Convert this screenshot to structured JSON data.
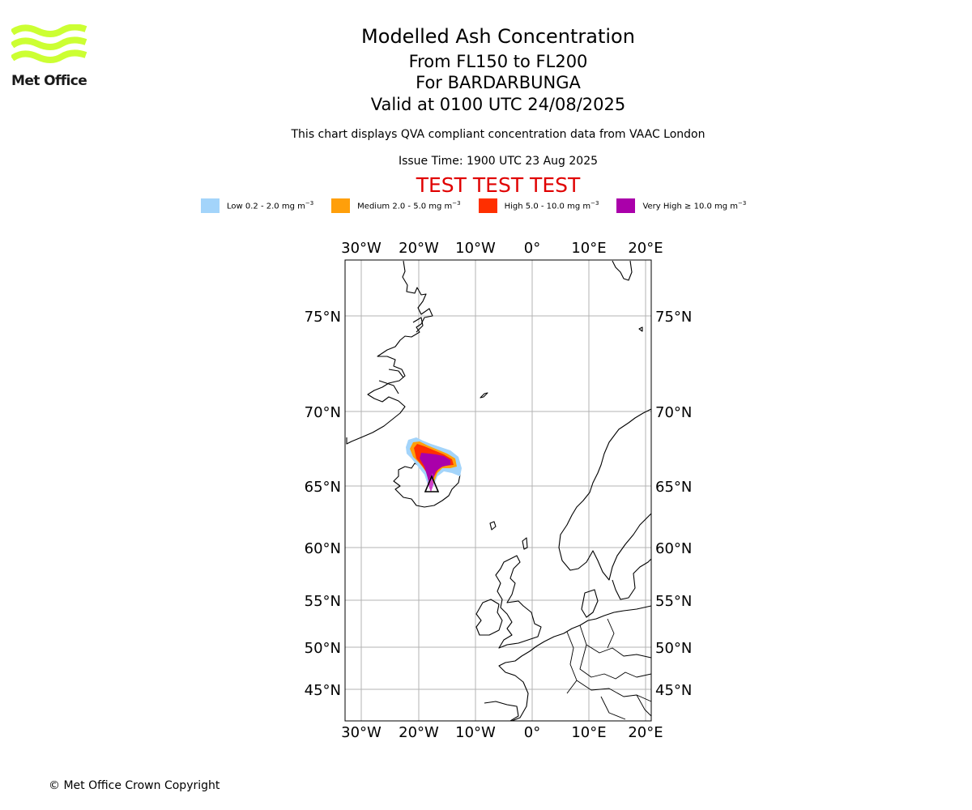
{
  "logo": {
    "text": "Met Office",
    "color": "#ccff33"
  },
  "titles": {
    "main": "Modelled Ash Concentration",
    "levels": "From FL150 to FL200",
    "volcano": "For BARDARBUNGA",
    "valid": "Valid at 0100 UTC 24/08/2025"
  },
  "description": "This chart displays QVA compliant concentration data from VAAC London",
  "issue_time": "Issue Time: 1900 UTC 23 Aug 2025",
  "test_banner": "TEST TEST TEST",
  "legend": [
    {
      "label": "Low 0.2 - 2.0 mg m",
      "color": "#a3d4fa"
    },
    {
      "label": "Medium 2.0 - 5.0 mg m",
      "color": "#ff9f0a"
    },
    {
      "label": "High 5.0 - 10.0 mg m",
      "color": "#ff2f00"
    },
    {
      "label": "Very High ≥ 10.0 mg m",
      "color": "#aa00aa"
    }
  ],
  "legend_unit_exponent": "−3",
  "map": {
    "lon_range": [
      -33,
      21
    ],
    "lat_range": [
      42,
      78
    ],
    "lon_ticks": [
      "30°W",
      "20°W",
      "10°W",
      "0°",
      "10°E",
      "20°E"
    ],
    "lat_ticks": [
      "75°N",
      "70°N",
      "65°N",
      "60°N",
      "55°N",
      "50°N",
      "45°N"
    ],
    "grid": true,
    "volcano_marker": "triangle"
  },
  "copyright": "© Met Office Crown Copyright"
}
